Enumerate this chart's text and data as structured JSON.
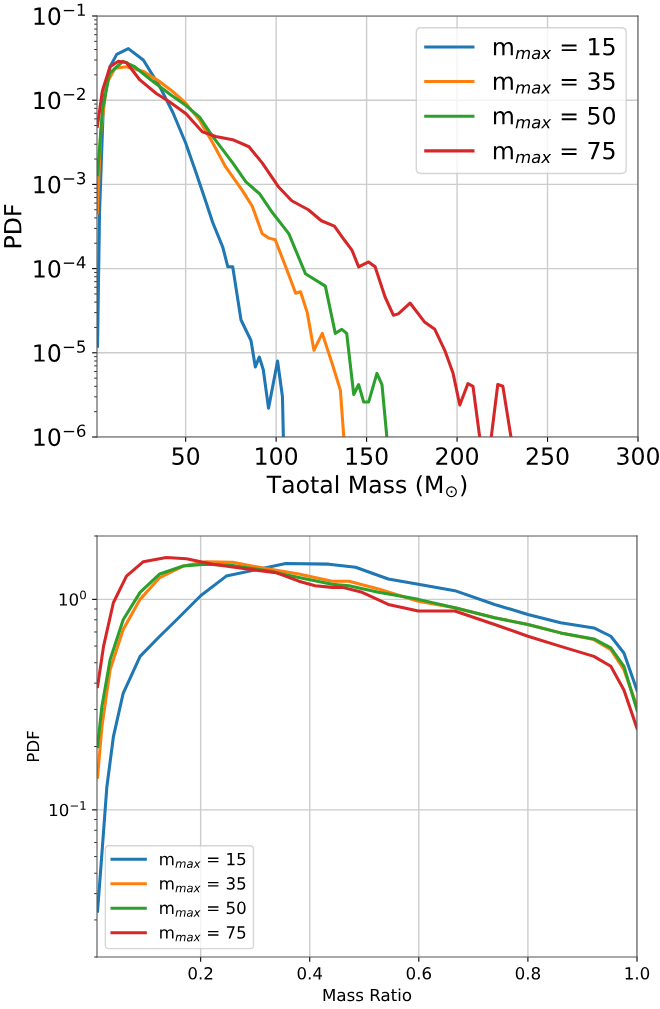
{
  "chart_data": [
    {
      "type": "line",
      "xlabel": "Taotal Mass (M$_{⊙}$)",
      "ylabel": "PDF",
      "log": "y",
      "grid": true,
      "legend": "top right",
      "xlim": [
        1,
        300
      ],
      "xticks": [
        50,
        100,
        150,
        200,
        250,
        300
      ],
      "ylim": [
        1e-06,
        0.1
      ],
      "yticks": [
        {
          "value": 1e-06,
          "label": "10$^{−6}$"
        },
        {
          "value": 1e-05,
          "label": "10$^{−5}$"
        },
        {
          "value": 0.0001,
          "label": "10$^{−4}$"
        },
        {
          "value": 0.001,
          "label": "10$^{−3}$"
        },
        {
          "value": 0.01,
          "label": "10$^{−2}$"
        },
        {
          "value": 0.1,
          "label": "10$^{−1}$"
        }
      ],
      "series": [
        {
          "name": "m$_{max}$ = 15",
          "color": "#1f77b4",
          "x": [
            1.3,
            2.4,
            4.6,
            8.2,
            11.9,
            18.3,
            26.6,
            35.7,
            43,
            50,
            55.9,
            61.4,
            65,
            70.5,
            73.3,
            76,
            80.6,
            86.1,
            88.5,
            90.7,
            92.9,
            95.8,
            100.8,
            103.5,
            104
          ],
          "values": [
            1.2e-05,
            0.00046,
            0.01,
            0.025,
            0.035,
            0.041,
            0.03,
            0.0145,
            0.0071,
            0.0031,
            0.00135,
            0.0006,
            0.00035,
            0.00018,
            0.000105,
            0.000105,
            2.45e-05,
            1.4e-05,
            6.8e-06,
            8.9e-06,
            6.3e-06,
            2.2e-06,
            8e-06,
            3e-06,
            1e-06
          ]
        },
        {
          "name": "m$_{max}$ = 35",
          "color": "#ff7f0e",
          "x": [
            1.2,
            3,
            6.4,
            11,
            17.3,
            26.6,
            35.7,
            43,
            50,
            57.7,
            65,
            72.2,
            81.3,
            86.8,
            92.3,
            96,
            99.5,
            105.3,
            110.8,
            113.5,
            117.2,
            120.9,
            125.5,
            131,
            135.5,
            137.4
          ],
          "values": [
            0.00046,
            0.004,
            0.016,
            0.024,
            0.025,
            0.022,
            0.0166,
            0.0126,
            0.0092,
            0.0058,
            0.0031,
            0.0016,
            0.00085,
            0.00055,
            0.00026,
            0.00023,
            0.00022,
            0.000105,
            5.1e-05,
            5.3e-05,
            3e-05,
            1.07e-05,
            1.7e-05,
            7.4e-06,
            3.6e-06,
            1e-06
          ]
        },
        {
          "name": "m$_{max}$ = 50",
          "color": "#2ca02c",
          "x": [
            1.3,
            4,
            8,
            15.4,
            21.8,
            30.9,
            41.9,
            50,
            57.7,
            65,
            76,
            83.3,
            90.7,
            98,
            107,
            116.2,
            127.2,
            132.7,
            136.3,
            139,
            142.9,
            145.6,
            148.4,
            151.1,
            155.7,
            158.5,
            161.2
          ],
          "values": [
            0.0013,
            0.0076,
            0.021,
            0.029,
            0.025,
            0.0174,
            0.0115,
            0.0087,
            0.0063,
            0.0037,
            0.0018,
            0.00107,
            0.00078,
            0.00046,
            0.00026,
            8.7e-05,
            6.2e-05,
            1.7e-05,
            1.9e-05,
            1.7e-05,
            3.2e-06,
            4.2e-06,
            2.6e-06,
            2.6e-06,
            5.7e-06,
            4.2e-06,
            1e-06
          ]
        },
        {
          "name": "m$_{max}$ = 75",
          "color": "#d62728",
          "x": [
            1.2,
            4,
            8.2,
            12.8,
            17.3,
            24.7,
            33.8,
            41,
            50.2,
            59.3,
            66.6,
            76,
            85,
            92.3,
            101.4,
            108.6,
            117.8,
            125,
            132.2,
            137.6,
            141.9,
            145.6,
            151.1,
            154.7,
            160.2,
            164.8,
            167.5,
            174,
            182.2,
            187.7,
            193.2,
            197.8,
            201.5,
            206,
            208.8,
            212.5,
            215,
            218.9,
            222.5,
            225.3,
            229.8
          ],
          "values": [
            0.0049,
            0.013,
            0.025,
            0.029,
            0.028,
            0.0174,
            0.012,
            0.0096,
            0.0069,
            0.0042,
            0.0037,
            0.0034,
            0.0028,
            0.0018,
            0.00093,
            0.00064,
            0.0005,
            0.00037,
            0.00032,
            0.00022,
            0.000166,
            0.000105,
            0.00012,
            0.000105,
            4.6e-05,
            2.8e-05,
            2.9e-05,
            3.9e-05,
            2.3e-05,
            1.9e-05,
            1.07e-05,
            5.7e-06,
            2.4e-06,
            4.3e-06,
            4e-06,
            1e-06,
            null,
            1e-06,
            4.2e-06,
            4e-06,
            1e-06
          ]
        }
      ]
    },
    {
      "type": "line",
      "xlabel": "Mass Ratio",
      "ylabel": "PDF",
      "log": "y",
      "grid": true,
      "legend": "bottom left",
      "xlim": [
        0.01,
        1.0
      ],
      "xticks": [
        0.2,
        0.4,
        0.6,
        0.8,
        {
          "value": 1.0,
          "label": "1.0"
        }
      ],
      "ylim": [
        0.02,
        2.0
      ],
      "yticks": [
        {
          "value": 0.1,
          "label": "10$^{−1}$"
        },
        {
          "value": 1,
          "label": "10$^{0}$"
        }
      ],
      "series": [
        {
          "name": "m$_{max}$ = 15",
          "color": "#1f77b4",
          "x": [
            0.011,
            0.019,
            0.028,
            0.04,
            0.058,
            0.089,
            0.125,
            0.156,
            0.2,
            0.247,
            0.356,
            0.435,
            0.484,
            0.544,
            0.599,
            0.666,
            0.739,
            0.8,
            0.86,
            0.921,
            0.952,
            0.976,
            1.0
          ],
          "values": [
            0.033,
            0.062,
            0.128,
            0.222,
            0.358,
            0.536,
            0.668,
            0.8,
            1.04,
            1.29,
            1.48,
            1.47,
            1.42,
            1.25,
            1.18,
            1.1,
            0.946,
            0.848,
            0.774,
            0.732,
            0.668,
            0.556,
            0.37
          ]
        },
        {
          "name": "m$_{max}$ = 35",
          "color": "#ff7f0e",
          "x": [
            0.011,
            0.019,
            0.034,
            0.058,
            0.089,
            0.125,
            0.168,
            0.21,
            0.259,
            0.32,
            0.38,
            0.441,
            0.472,
            0.526,
            0.599,
            0.666,
            0.739,
            0.8,
            0.86,
            0.921,
            0.952,
            0.976,
            1.0
          ],
          "values": [
            0.143,
            0.248,
            0.463,
            0.719,
            1.0,
            1.27,
            1.44,
            1.51,
            1.5,
            1.4,
            1.32,
            1.22,
            1.22,
            1.12,
            0.98,
            0.913,
            0.817,
            0.76,
            0.693,
            0.644,
            0.577,
            0.463,
            0.31
          ]
        },
        {
          "name": "m$_{max}$ = 50",
          "color": "#2ca02c",
          "x": [
            0.011,
            0.019,
            0.034,
            0.058,
            0.089,
            0.125,
            0.168,
            0.21,
            0.259,
            0.32,
            0.38,
            0.441,
            0.472,
            0.526,
            0.599,
            0.666,
            0.739,
            0.8,
            0.86,
            0.921,
            0.952,
            0.976,
            1.0
          ],
          "values": [
            0.2,
            0.31,
            0.517,
            0.8,
            1.08,
            1.32,
            1.44,
            1.47,
            1.45,
            1.37,
            1.27,
            1.18,
            1.16,
            1.08,
            1.0,
            0.913,
            0.817,
            0.76,
            0.693,
            0.649,
            0.588,
            0.481,
            0.298
          ]
        },
        {
          "name": "m$_{max}$ = 75",
          "color": "#d62728",
          "x": [
            0.011,
            0.022,
            0.04,
            0.064,
            0.095,
            0.137,
            0.174,
            0.222,
            0.289,
            0.338,
            0.38,
            0.41,
            0.441,
            0.46,
            0.496,
            0.544,
            0.599,
            0.666,
            0.739,
            0.8,
            0.86,
            0.921,
            0.952,
            0.976,
            1.0
          ],
          "values": [
            0.385,
            0.598,
            0.964,
            1.29,
            1.51,
            1.58,
            1.56,
            1.47,
            1.39,
            1.34,
            1.22,
            1.16,
            1.14,
            1.14,
            1.08,
            0.946,
            0.88,
            0.88,
            0.76,
            0.668,
            0.598,
            0.536,
            0.481,
            0.371,
            0.244
          ]
        }
      ]
    }
  ]
}
